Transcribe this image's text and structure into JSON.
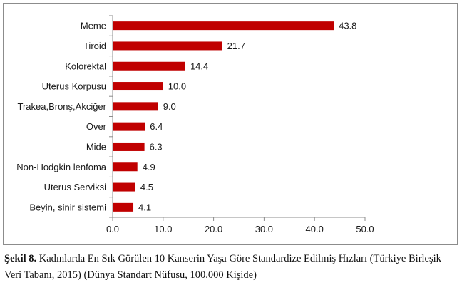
{
  "chart_data": {
    "type": "bar",
    "orientation": "horizontal",
    "categories": [
      "Meme",
      "Tiroid",
      "Kolorektal",
      "Uterus Korpusu",
      "Trakea,Bronş,Akciğer",
      "Over",
      "Mide",
      "Non-Hodgkin lenfoma",
      "Uterus Serviksi",
      "Beyin, sinir sistemi"
    ],
    "values": [
      43.8,
      21.7,
      14.4,
      10.0,
      9.0,
      6.4,
      6.3,
      4.9,
      4.5,
      4.1
    ],
    "value_labels": [
      "43.8",
      "21.7",
      "14.4",
      "10.0",
      "9.0",
      "6.4",
      "6.3",
      "4.9",
      "4.5",
      "4.1"
    ],
    "xlim": [
      0,
      50
    ],
    "xticks": [
      "0.0",
      "10.0",
      "20.0",
      "30.0",
      "40.0",
      "50.0"
    ],
    "bar_color": "#c00000",
    "grid": false,
    "title": "",
    "xlabel": "",
    "ylabel": ""
  },
  "caption": {
    "label": "Şekil 8.",
    "text": " Kadınlarda En Sık Görülen 10 Kanserin Yaşa Göre Standardize Edilmiş Hızları (Türkiye Birleşik Veri Tabanı, 2015) (Dünya Standart Nüfusu, 100.000 Kişide)"
  }
}
